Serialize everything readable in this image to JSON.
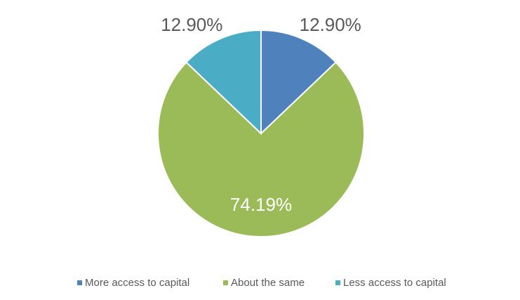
{
  "chart_data": {
    "type": "pie",
    "categories": [
      "More access to capital",
      "About the same",
      "Less access to capital"
    ],
    "values": [
      12.9,
      74.19,
      12.9
    ],
    "value_labels": [
      "12.90%",
      "74.19%",
      "12.90%"
    ],
    "colors": [
      "#4f81bd",
      "#9bbb59",
      "#4bacc6"
    ],
    "legend": "bottom"
  }
}
